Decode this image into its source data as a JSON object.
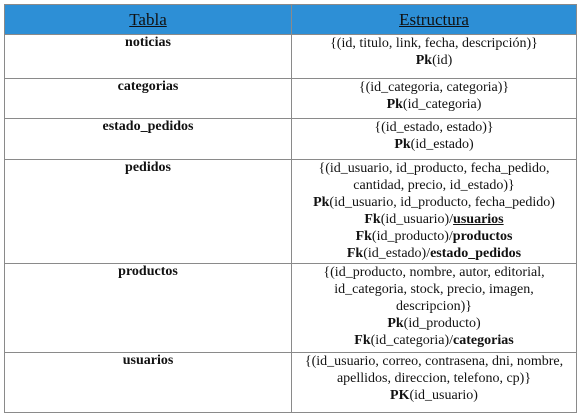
{
  "headers": {
    "tabla": "Tabla",
    "estructura": "Estructura"
  },
  "colors": {
    "header_background": "#2d8fd6",
    "border": "#8a8a8a"
  },
  "rows": {
    "noticias": {
      "name": "noticias",
      "fields": "{(id, titulo, link, fecha, descripción)}",
      "pk_keyword": "Pk",
      "pk_value": "(id)"
    },
    "categorias": {
      "name": "categorias",
      "fields": "{(id_categoria, categoria)}",
      "pk_keyword": "Pk",
      "pk_value": "(id_categoria)"
    },
    "estado_pedidos": {
      "name": "estado_pedidos",
      "fields": "{(id_estado, estado)}",
      "pk_keyword": "Pk",
      "pk_value": "(id_estado)"
    },
    "pedidos": {
      "name": "pedidos",
      "fields_line1": "{(id_usuario, id_producto, fecha_pedido,",
      "fields_line2": "cantidad, precio, id_estado)}",
      "pk_keyword": "Pk",
      "pk_value": "(id_usuario, id_producto, fecha_pedido)",
      "fk_keyword": "Fk",
      "fk1_value": "(id_usuario)/",
      "fk1_ref": "usuarios",
      "fk2_value": "(id_producto)/",
      "fk2_ref": "productos",
      "fk3_value": "(id_estado)/",
      "fk3_ref": "estado_pedidos"
    },
    "productos": {
      "name": "productos",
      "fields_line1": "{(id_producto, nombre, autor, editorial,",
      "fields_line2": "id_categoria, stock, precio, imagen,",
      "fields_line3": "descripcion)}",
      "pk_keyword": "Pk",
      "pk_value": "(id_producto)",
      "fk_keyword": "Fk",
      "fk1_value": "(id_categoria)/",
      "fk1_ref": "categorias"
    },
    "usuarios": {
      "name": "usuarios",
      "fields_line1": "{(id_usuario, correo, contrasena, dni, nombre,",
      "fields_line2": "apellidos, direccion, telefono, cp)}",
      "pk_keyword": "PK",
      "pk_value": "(id_usuario)"
    }
  }
}
